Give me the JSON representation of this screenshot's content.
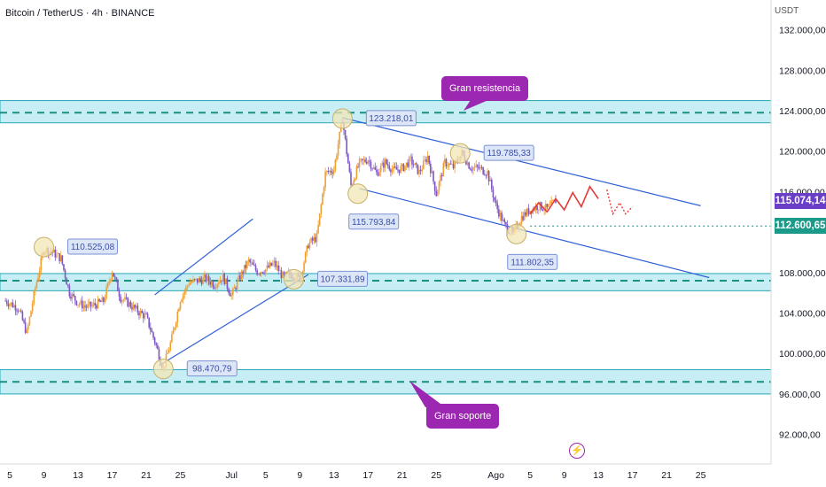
{
  "header": {
    "title": "Bitcoin / TetherUS · 4h · BINANCE",
    "currency": "USDT"
  },
  "price_scale": {
    "ticks": [
      {
        "label": "132.000,00",
        "value": 132000
      },
      {
        "label": "128.000,00",
        "value": 128000
      },
      {
        "label": "124.000,00",
        "value": 124000
      },
      {
        "label": "120.000,00",
        "value": 120000
      },
      {
        "label": "116.000,00",
        "value": 116000
      },
      {
        "label": "108.000,00",
        "value": 108000
      },
      {
        "label": "104.000,00",
        "value": 104000
      },
      {
        "label": "100.000,00",
        "value": 100000
      },
      {
        "label": "96.000,00",
        "value": 96000
      },
      {
        "label": "92.000,00",
        "value": 92000
      }
    ],
    "current_price": {
      "label": "115.074,14",
      "value": 115074.14,
      "color": "#6a3ec7"
    },
    "level_price": {
      "label": "112.600,65",
      "value": 112600.65,
      "color": "#1b9a8a"
    }
  },
  "time_axis": {
    "ticks": [
      {
        "label": "5",
        "day": 5
      },
      {
        "label": "9",
        "day": 9
      },
      {
        "label": "13",
        "day": 13
      },
      {
        "label": "17",
        "day": 17
      },
      {
        "label": "21",
        "day": 21
      },
      {
        "label": "25",
        "day": 25
      },
      {
        "label": "Jul",
        "day": 31
      },
      {
        "label": "5",
        "day": 35
      },
      {
        "label": "9",
        "day": 39
      },
      {
        "label": "13",
        "day": 43
      },
      {
        "label": "17",
        "day": 47
      },
      {
        "label": "21",
        "day": 51
      },
      {
        "label": "25",
        "day": 55
      },
      {
        "label": "Ago",
        "day": 62
      },
      {
        "label": "5",
        "day": 66
      },
      {
        "label": "9",
        "day": 70
      },
      {
        "label": "13",
        "day": 74
      },
      {
        "label": "17",
        "day": 78
      },
      {
        "label": "21",
        "day": 82
      },
      {
        "label": "25",
        "day": 86
      }
    ]
  },
  "annotations": {
    "resistance": "Gran resistencia",
    "support": "Gran soporte"
  },
  "colors": {
    "up": "#f0a030",
    "down": "#7e57c2",
    "zone_fill": "#c8eef5",
    "zone_border": "#26a9b8",
    "zone_line": "#1b8f80",
    "channel": "#2f5fd6",
    "projection": "#e53935",
    "label_box_fill": "#dde6f7",
    "label_box_border": "#7b92d4",
    "label_text": "#3a4fa8",
    "circle_fill": "#f2e6b6",
    "circle_stroke": "#c8b06a",
    "annotation": "#9c27b0"
  },
  "chart_data": {
    "type": "candlestick",
    "title": "Bitcoin / TetherUS · 4h · BINANCE",
    "y_unit": "USDT",
    "ylim": [
      90000,
      134000
    ],
    "x_unit": "days from June 1",
    "xlim": [
      4.5,
      91
    ],
    "grid": false,
    "price_path": [
      [
        4.5,
        105200
      ],
      [
        6,
        104500
      ],
      [
        7,
        102000
      ],
      [
        8,
        106500
      ],
      [
        9,
        110300
      ],
      [
        10,
        110000
      ],
      [
        11,
        109400
      ],
      [
        12,
        106000
      ],
      [
        13,
        105000
      ],
      [
        14,
        104600
      ],
      [
        15,
        104800
      ],
      [
        16,
        105200
      ],
      [
        17,
        108200
      ],
      [
        18,
        105500
      ],
      [
        19,
        104900
      ],
      [
        20,
        104200
      ],
      [
        21,
        103600
      ],
      [
        22,
        101200
      ],
      [
        23,
        98500
      ],
      [
        24,
        101500
      ],
      [
        25,
        105400
      ],
      [
        26,
        107000
      ],
      [
        27,
        107200
      ],
      [
        28,
        107400
      ],
      [
        29,
        106800
      ],
      [
        30,
        107600
      ],
      [
        31,
        105700
      ],
      [
        32,
        107600
      ],
      [
        33,
        109100
      ],
      [
        34,
        108100
      ],
      [
        35,
        108300
      ],
      [
        36,
        108900
      ],
      [
        37,
        107600
      ],
      [
        38,
        107800
      ],
      [
        39,
        107400
      ],
      [
        40,
        110800
      ],
      [
        41,
        111500
      ],
      [
        42,
        117800
      ],
      [
        43,
        118200
      ],
      [
        44,
        123200
      ],
      [
        45,
        116600
      ],
      [
        46,
        118800
      ],
      [
        47,
        119200
      ],
      [
        48,
        117800
      ],
      [
        49,
        118900
      ],
      [
        50,
        118100
      ],
      [
        51,
        118300
      ],
      [
        52,
        119100
      ],
      [
        53,
        117900
      ],
      [
        54,
        119500
      ],
      [
        55,
        115800
      ],
      [
        56,
        118900
      ],
      [
        57,
        118400
      ],
      [
        58,
        119800
      ],
      [
        59,
        118400
      ],
      [
        60,
        118300
      ],
      [
        61,
        117900
      ],
      [
        62,
        114600
      ],
      [
        63,
        112700
      ],
      [
        64,
        111800
      ],
      [
        65,
        113500
      ],
      [
        66,
        114200
      ],
      [
        67,
        114600
      ],
      [
        68,
        114300
      ],
      [
        69,
        115100
      ]
    ],
    "levels": {
      "resistance_zone": [
        122800,
        125000
      ],
      "resistance_line": 123800,
      "support_high_zone": [
        106200,
        107900
      ],
      "support_high_line": 107200,
      "support_zone": [
        96000,
        98400
      ],
      "support_line": 97200,
      "current_price": 115074.14,
      "marked_level": 112600.65
    },
    "channels": [
      {
        "name": "ascending",
        "lines": [
          [
            [
              22.5,
              98800
            ],
            [
              40,
              107800
            ]
          ],
          [
            [
              22,
              105800
            ],
            [
              33.5,
              113300
            ]
          ]
        ]
      },
      {
        "name": "descending",
        "lines": [
          [
            [
              44,
              123300
            ],
            [
              86,
              114600
            ]
          ],
          [
            [
              46,
              116300
            ],
            [
              87,
              107500
            ]
          ]
        ]
      }
    ],
    "pivots": [
      {
        "label": "110.525,08",
        "x": 9,
        "y": 110525.08,
        "placement": "right"
      },
      {
        "label": "98.470,79",
        "x": 23,
        "y": 98470.79,
        "placement": "right"
      },
      {
        "label": "107.331,89",
        "x": 38.3,
        "y": 107331.89,
        "placement": "right"
      },
      {
        "label": "123.218,01",
        "x": 44,
        "y": 123218.01,
        "placement": "right"
      },
      {
        "label": "115.793,84",
        "x": 45.8,
        "y": 115793.84,
        "placement": "below"
      },
      {
        "label": "119.785,33",
        "x": 57.8,
        "y": 119785.33,
        "placement": "right"
      },
      {
        "label": "111.802,35",
        "x": 64.4,
        "y": 111802.35,
        "placement": "below"
      }
    ],
    "projection": [
      [
        66,
        113800
      ],
      [
        67,
        114900
      ],
      [
        68,
        114000
      ],
      [
        69,
        115300
      ],
      [
        70,
        114200
      ],
      [
        71,
        115900
      ],
      [
        72,
        114500
      ],
      [
        73,
        116500
      ],
      [
        74,
        115300
      ]
    ],
    "projection_dotted": [
      [
        75,
        116200
      ],
      [
        75.7,
        113800
      ],
      [
        76.5,
        114900
      ],
      [
        77.2,
        113800
      ],
      [
        78,
        114500
      ]
    ]
  }
}
